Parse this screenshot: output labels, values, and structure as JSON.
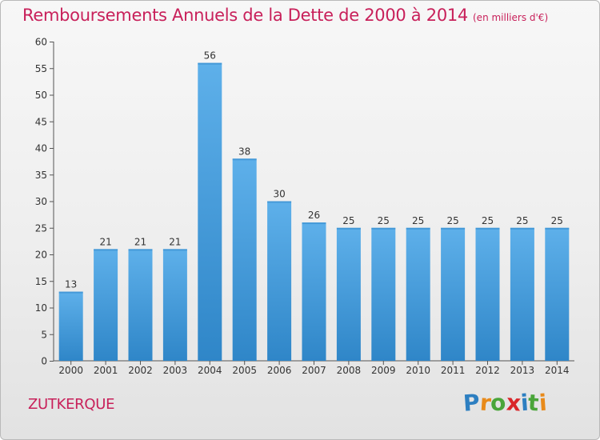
{
  "title": "Remboursements Annuels de la Dette de 2000 à 2014",
  "unit_note": "(en milliers d'€)",
  "location": "ZUTKERQUE",
  "logo": {
    "letters": [
      "P",
      "r",
      "o",
      "x",
      "i",
      "t",
      "i"
    ],
    "colors": [
      "#2d7fc1",
      "#e88a1a",
      "#4aa53a",
      "#d9262a",
      "#2d7fc1",
      "#4aa53a",
      "#e88a1a"
    ]
  },
  "colors": {
    "bar_top": "#5eb0ea",
    "bar_bottom": "#2f86c8",
    "accent": "#c8205a"
  },
  "chart_data": {
    "type": "bar",
    "title": "Remboursements Annuels de la Dette de 2000 à 2014",
    "subtitle": "(en milliers d'€)",
    "xlabel": "",
    "ylabel": "",
    "ylim": [
      0,
      60
    ],
    "yticks": [
      0,
      5,
      10,
      15,
      20,
      25,
      30,
      35,
      40,
      45,
      50,
      55,
      60
    ],
    "grid": false,
    "categories": [
      "2000",
      "2001",
      "2002",
      "2003",
      "2004",
      "2005",
      "2006",
      "2007",
      "2008",
      "2009",
      "2010",
      "2011",
      "2012",
      "2013",
      "2014"
    ],
    "values": [
      13,
      21,
      21,
      21,
      56,
      38,
      30,
      26,
      25,
      25,
      25,
      25,
      25,
      25,
      25
    ]
  }
}
